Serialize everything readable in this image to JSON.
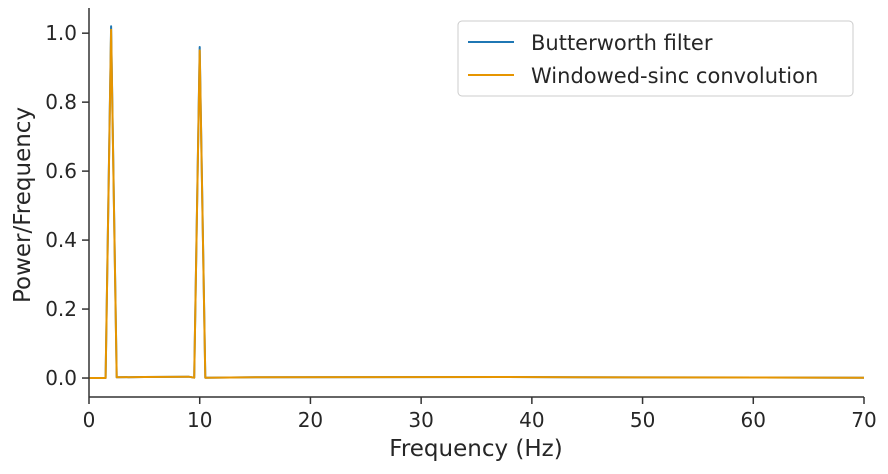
{
  "chart_data": {
    "type": "line",
    "title": "",
    "xlabel": "Frequency (Hz)",
    "ylabel": "Power/Frequency",
    "xlim": [
      0,
      70
    ],
    "ylim": [
      -0.055,
      1.073
    ],
    "xticks": [
      0,
      10,
      20,
      30,
      40,
      50,
      60,
      70
    ],
    "xtick_labels": [
      "0",
      "10",
      "20",
      "30",
      "40",
      "50",
      "60",
      "70"
    ],
    "yticks": [
      0.0,
      0.2,
      0.4,
      0.6,
      0.8,
      1.0
    ],
    "ytick_labels": [
      "0.0",
      "0.2",
      "0.4",
      "0.6",
      "0.8",
      "1.0"
    ],
    "grid": false,
    "legend_position": "top-right",
    "series": [
      {
        "name": "Butterworth filter",
        "color": "#1f77b4",
        "x": [
          0,
          1.5,
          2,
          2.5,
          5,
          9,
          9.5,
          10,
          10.5,
          15,
          37.5,
          44,
          70
        ],
        "y": [
          0,
          0,
          1.02,
          0.002,
          0.003,
          0.004,
          0.001,
          0.96,
          0.001,
          0.002,
          0.003,
          0.002,
          0.001
        ]
      },
      {
        "name": "Windowed-sinc convolution",
        "color": "#e69500",
        "x": [
          0,
          1.5,
          2,
          2.5,
          5,
          9,
          9.5,
          10,
          10.5,
          15,
          37.5,
          44,
          70
        ],
        "y": [
          0,
          0,
          1.01,
          0.002,
          0.003,
          0.004,
          0.001,
          0.95,
          0.001,
          0.002,
          0.003,
          0.002,
          0.001
        ]
      }
    ]
  }
}
